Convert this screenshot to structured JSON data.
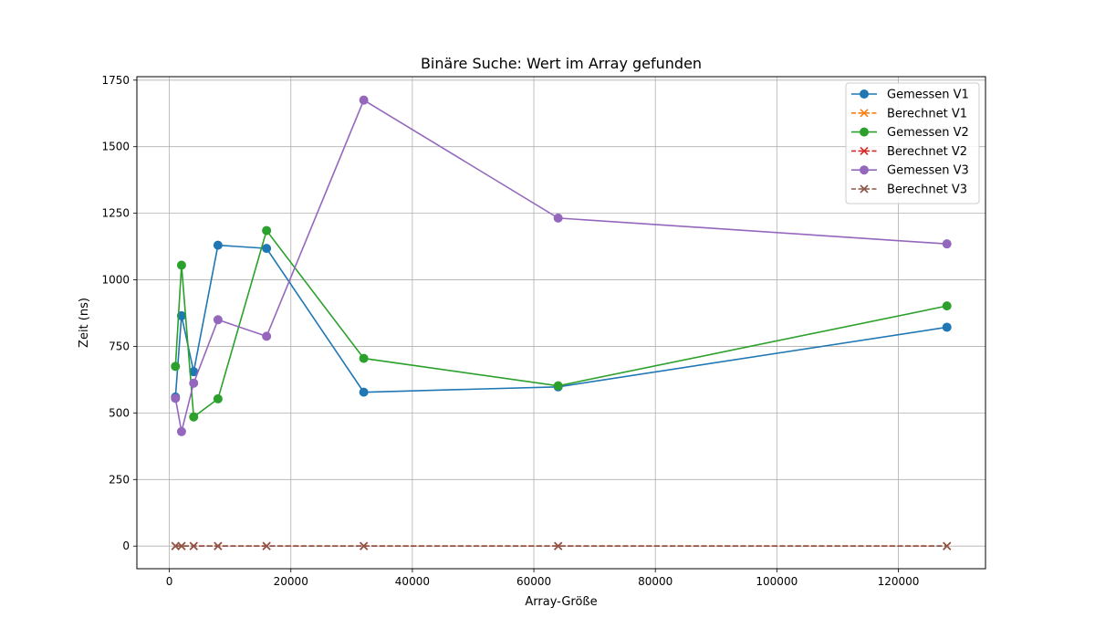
{
  "chart_data": {
    "type": "line",
    "title": "Binäre Suche: Wert im Array gefunden",
    "xlabel": "Array-Größe",
    "ylabel": "Zeit (ns)",
    "xlim": [
      -5350,
      134350
    ],
    "ylim": [
      -85,
      1763
    ],
    "xticks": [
      0,
      20000,
      40000,
      60000,
      80000,
      100000,
      120000
    ],
    "yticks": [
      0,
      250,
      500,
      750,
      1000,
      1250,
      1500,
      1750
    ],
    "grid": true,
    "legend_position": "upper right",
    "x": [
      1000,
      2000,
      4000,
      8000,
      16000,
      32000,
      64000,
      128000
    ],
    "series": [
      {
        "name": "Gemessen V1",
        "color": "#1f77b4",
        "linestyle": "solid",
        "marker": "circle",
        "values": [
          560,
          865,
          655,
          1130,
          1118,
          578,
          598,
          822
        ]
      },
      {
        "name": "Berechnet V1",
        "color": "#ff7f0e",
        "linestyle": "dashed",
        "marker": "x",
        "values": [
          0.01,
          0.011,
          0.012,
          0.013,
          0.014,
          0.015,
          0.016,
          0.017
        ]
      },
      {
        "name": "Gemessen V2",
        "color": "#2ca02c",
        "linestyle": "solid",
        "marker": "circle",
        "values": [
          675,
          1055,
          485,
          553,
          1185,
          705,
          602,
          902
        ]
      },
      {
        "name": "Berechnet V2",
        "color": "#d62728",
        "linestyle": "dashed",
        "marker": "x",
        "values": [
          0.01,
          0.011,
          0.012,
          0.013,
          0.014,
          0.015,
          0.016,
          0.017
        ]
      },
      {
        "name": "Gemessen V3",
        "color": "#9467bd",
        "linestyle": "solid",
        "marker": "circle",
        "values": [
          555,
          430,
          612,
          850,
          788,
          1675,
          1232,
          1135
        ]
      },
      {
        "name": "Berechnet V3",
        "color": "#8c564b",
        "linestyle": "dashed",
        "marker": "x",
        "values": [
          0.01,
          0.011,
          0.012,
          0.013,
          0.014,
          0.015,
          0.016,
          0.017
        ]
      }
    ]
  }
}
